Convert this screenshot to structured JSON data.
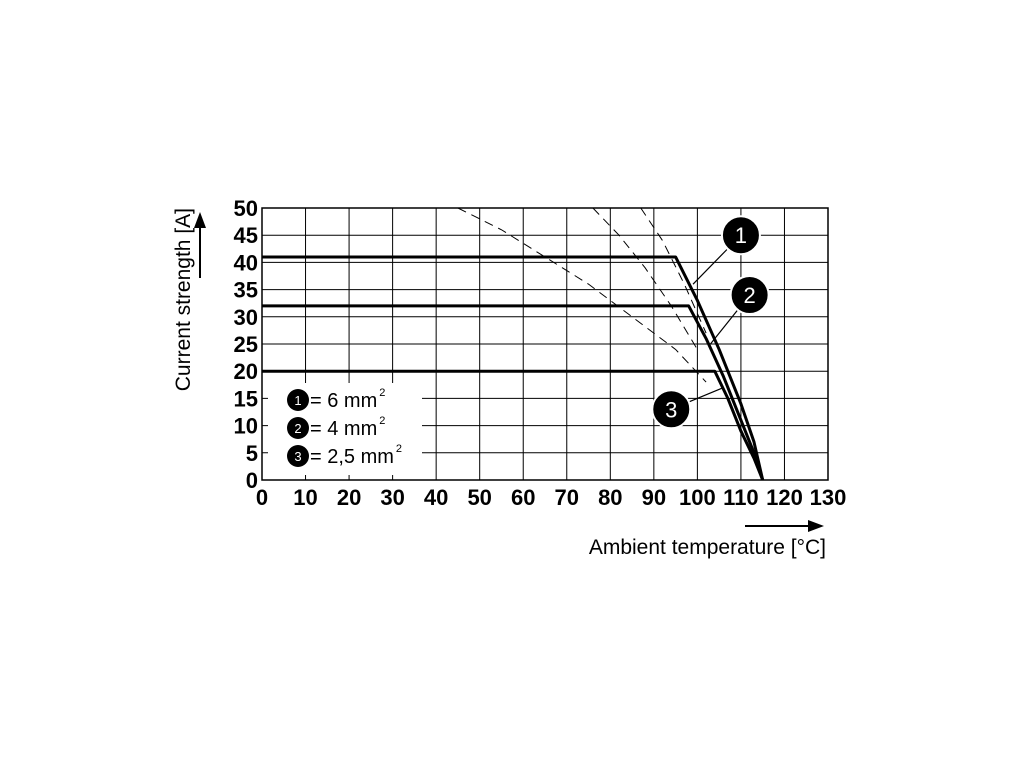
{
  "chart_data": {
    "type": "line",
    "xlabel": "Ambient temperature [°C]",
    "ylabel": "Current strength [A]",
    "xlim": [
      0,
      130
    ],
    "ylim": [
      0,
      50
    ],
    "x_ticks": [
      "0",
      "10",
      "20",
      "30",
      "40",
      "50",
      "60",
      "70",
      "80",
      "90",
      "100",
      "110",
      "120",
      "130"
    ],
    "y_ticks": [
      "0",
      "5",
      "10",
      "15",
      "20",
      "25",
      "30",
      "35",
      "40",
      "45",
      "50"
    ],
    "grid": true,
    "legend_position": "bottom-left",
    "legend": [
      {
        "marker": "1",
        "text": "= 6 mm",
        "sup": "2"
      },
      {
        "marker": "2",
        "text": "= 4 mm",
        "sup": "2"
      },
      {
        "marker": "3",
        "text": "= 2,5 mm",
        "sup": "2"
      }
    ],
    "series": [
      {
        "marker": "1",
        "style": "solid",
        "x": [
          0,
          95,
          100,
          105,
          110,
          113,
          115
        ],
        "y": [
          41,
          41,
          33,
          24,
          14,
          7,
          0
        ]
      },
      {
        "marker": "2",
        "style": "solid",
        "x": [
          0,
          98,
          102,
          106,
          110,
          113,
          115
        ],
        "y": [
          32,
          32,
          26,
          19,
          11,
          5,
          0
        ]
      },
      {
        "marker": "3",
        "style": "solid",
        "x": [
          0,
          104,
          107,
          110,
          113,
          115
        ],
        "y": [
          20,
          20,
          15,
          9,
          4,
          0
        ]
      },
      {
        "marker": "1",
        "style": "dashed",
        "x": [
          87,
          92,
          97,
          102
        ],
        "y": [
          50,
          44,
          36,
          27
        ]
      },
      {
        "marker": "2",
        "style": "dashed",
        "x": [
          76,
          82,
          88,
          94,
          100
        ],
        "y": [
          50,
          45,
          39,
          32,
          24
        ]
      },
      {
        "marker": "3",
        "style": "dashed",
        "x": [
          45,
          55,
          65,
          75,
          85,
          95,
          102
        ],
        "y": [
          50,
          46,
          41,
          36,
          30,
          24,
          18
        ]
      }
    ],
    "callouts": [
      {
        "marker": "1",
        "x": 110,
        "y": 45,
        "target": [
          99,
          36
        ]
      },
      {
        "marker": "2",
        "x": 112,
        "y": 34,
        "target": [
          103,
          25
        ]
      },
      {
        "marker": "3",
        "x": 94,
        "y": 13,
        "target": [
          106,
          17
        ]
      }
    ]
  }
}
